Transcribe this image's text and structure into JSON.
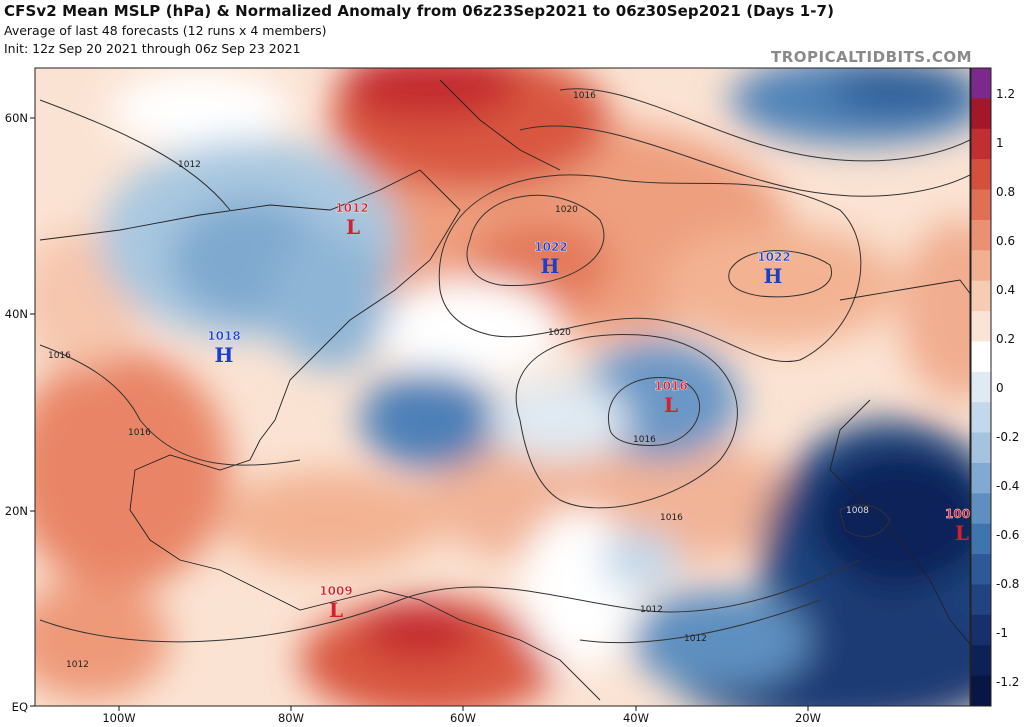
{
  "header": {
    "title": "CFSv2 Mean MSLP (hPa) & Normalized Anomaly from 06z23Sep2021 to 06z30Sep2021 (Days 1-7)",
    "subtitle": "Average of last 48 forecasts (12 runs x 4 members)",
    "init": "Init: 12z Sep 20 2021 through 06z Sep 23 2021",
    "brand": "TROPICALTIDBITS.COM"
  },
  "axes": {
    "lat_labels": [
      "60N",
      "40N",
      "20N",
      "EQ"
    ],
    "lon_labels": [
      "100W",
      "80W",
      "60W",
      "40W",
      "20W"
    ]
  },
  "colorbar": {
    "labels": [
      "1.2",
      "1",
      "0.8",
      "0.6",
      "0.4",
      "0.2",
      "0",
      "-0.2",
      "-0.4",
      "-0.6",
      "-0.8",
      "-1",
      "-1.2"
    ],
    "colors": [
      "#7b2a8c",
      "#a3172a",
      "#c12f33",
      "#d4503e",
      "#e07055",
      "#ea9073",
      "#f1b090",
      "#f6cdb3",
      "#fae4d6",
      "#ffffff",
      "#dfeaf3",
      "#c3d8ea",
      "#a3c3de",
      "#80aad0",
      "#5d8fc0",
      "#3f74ad",
      "#2c5a98",
      "#1f447f",
      "#15306a",
      "#0d2156",
      "#081643"
    ]
  },
  "centers": [
    {
      "letter": "L",
      "value": "1012",
      "color": "#d4202c"
    },
    {
      "letter": "H",
      "value": "1022",
      "color": "#1a3fd0"
    },
    {
      "letter": "H",
      "value": "1022",
      "color": "#1a3fd0"
    },
    {
      "letter": "H",
      "value": "1018",
      "color": "#1a3fd0"
    },
    {
      "letter": "L",
      "value": "1016",
      "color": "#d4202c"
    },
    {
      "letter": "L",
      "value": "100",
      "color": "#d4202c"
    },
    {
      "letter": "L",
      "value": "1009",
      "color": "#d4202c"
    }
  ],
  "contour_labels": [
    "1016",
    "1012",
    "1020",
    "1020",
    "1016",
    "1016",
    "1016",
    "1016",
    "1008",
    "1012",
    "1012",
    "1012"
  ]
}
